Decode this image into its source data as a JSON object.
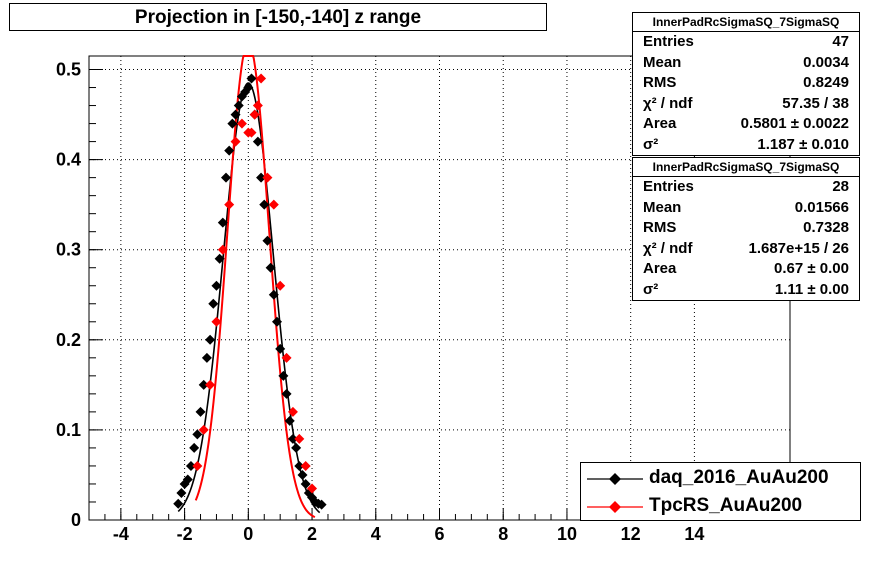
{
  "title": "Projection in [-150,-140] z range",
  "stats_boxes": [
    {
      "name": "InnerPadRcSigmaSQ_7SigmaSQ",
      "rows": [
        {
          "label": "Entries",
          "value": "47"
        },
        {
          "label": "Mean",
          "value": "0.0034"
        },
        {
          "label": "RMS",
          "value": "0.8249"
        },
        {
          "label": "χ² / ndf",
          "value": "57.35 / 38"
        },
        {
          "label": "Area",
          "value": "0.5801 ± 0.0022"
        },
        {
          "label": "σ²",
          "value": "1.187 ± 0.010"
        }
      ]
    },
    {
      "name": "InnerPadRcSigmaSQ_7SigmaSQ",
      "rows": [
        {
          "label": "Entries",
          "value": "28"
        },
        {
          "label": "Mean",
          "value": "0.01566"
        },
        {
          "label": "RMS",
          "value": "0.7328"
        },
        {
          "label": "χ² / ndf",
          "value": "1.687e+15 / 26"
        },
        {
          "label": "Area",
          "value": "0.67 ± 0.00"
        },
        {
          "label": "σ²",
          "value": "1.11 ± 0.00"
        }
      ]
    }
  ],
  "legend": [
    {
      "label": "daq_2016_AuAu200",
      "color": "#000000"
    },
    {
      "label": "TpcRS_AuAu200",
      "color": "#ff0000"
    }
  ],
  "chart_data": {
    "type": "scatter",
    "xlim": [
      -5,
      17
    ],
    "ylim": [
      0,
      0.515
    ],
    "x_ticks": [
      "-4",
      "-2",
      "0",
      "2",
      "4",
      "6",
      "8",
      "10",
      "12",
      "14"
    ],
    "x_tick_values": [
      -4,
      -2,
      0,
      2,
      4,
      6,
      8,
      10,
      12,
      14
    ],
    "y_ticks": [
      "0",
      "0.1",
      "0.2",
      "0.3",
      "0.4",
      "0.5"
    ],
    "y_tick_values": [
      0,
      0.1,
      0.2,
      0.3,
      0.4,
      0.5
    ],
    "grid": true,
    "series": [
      {
        "name": "daq_2016_AuAu200",
        "color": "#000000",
        "x": [
          -2.2,
          -2.1,
          -2.0,
          -1.9,
          -1.8,
          -1.7,
          -1.6,
          -1.5,
          -1.4,
          -1.3,
          -1.2,
          -1.1,
          -1.0,
          -0.9,
          -0.8,
          -0.7,
          -0.6,
          -0.5,
          -0.4,
          -0.3,
          -0.2,
          -0.1,
          0.0,
          0.1,
          0.2,
          0.3,
          0.4,
          0.5,
          0.6,
          0.7,
          0.8,
          0.9,
          1.0,
          1.1,
          1.2,
          1.3,
          1.4,
          1.5,
          1.6,
          1.7,
          1.8,
          1.9,
          2.0,
          2.1,
          2.2,
          2.3
        ],
        "y": [
          0.018,
          0.03,
          0.04,
          0.045,
          0.06,
          0.08,
          0.095,
          0.12,
          0.15,
          0.18,
          0.2,
          0.24,
          0.26,
          0.29,
          0.33,
          0.38,
          0.41,
          0.44,
          0.45,
          0.46,
          0.47,
          0.475,
          0.48,
          0.49,
          0.45,
          0.42,
          0.38,
          0.35,
          0.31,
          0.28,
          0.25,
          0.22,
          0.19,
          0.16,
          0.14,
          0.11,
          0.09,
          0.08,
          0.06,
          0.05,
          0.04,
          0.03,
          0.025,
          0.02,
          0.018,
          0.017
        ],
        "fit_sigma2": 1.187,
        "fit_area": 0.5801
      },
      {
        "name": "TpcRS_AuAu200",
        "color": "#ff0000",
        "x": [
          -1.6,
          -1.4,
          -1.2,
          -1.0,
          -0.8,
          -0.6,
          -0.4,
          -0.2,
          0.0,
          0.1,
          0.2,
          0.3,
          0.4,
          0.6,
          0.8,
          1.0,
          1.2,
          1.4,
          1.6,
          1.8,
          2.0
        ],
        "y": [
          0.06,
          0.1,
          0.15,
          0.22,
          0.3,
          0.35,
          0.42,
          0.44,
          0.43,
          0.43,
          0.45,
          0.46,
          0.49,
          0.38,
          0.35,
          0.26,
          0.18,
          0.12,
          0.09,
          0.06,
          0.035
        ],
        "fit_sigma2": 1.11,
        "fit_area": 0.67
      }
    ]
  }
}
